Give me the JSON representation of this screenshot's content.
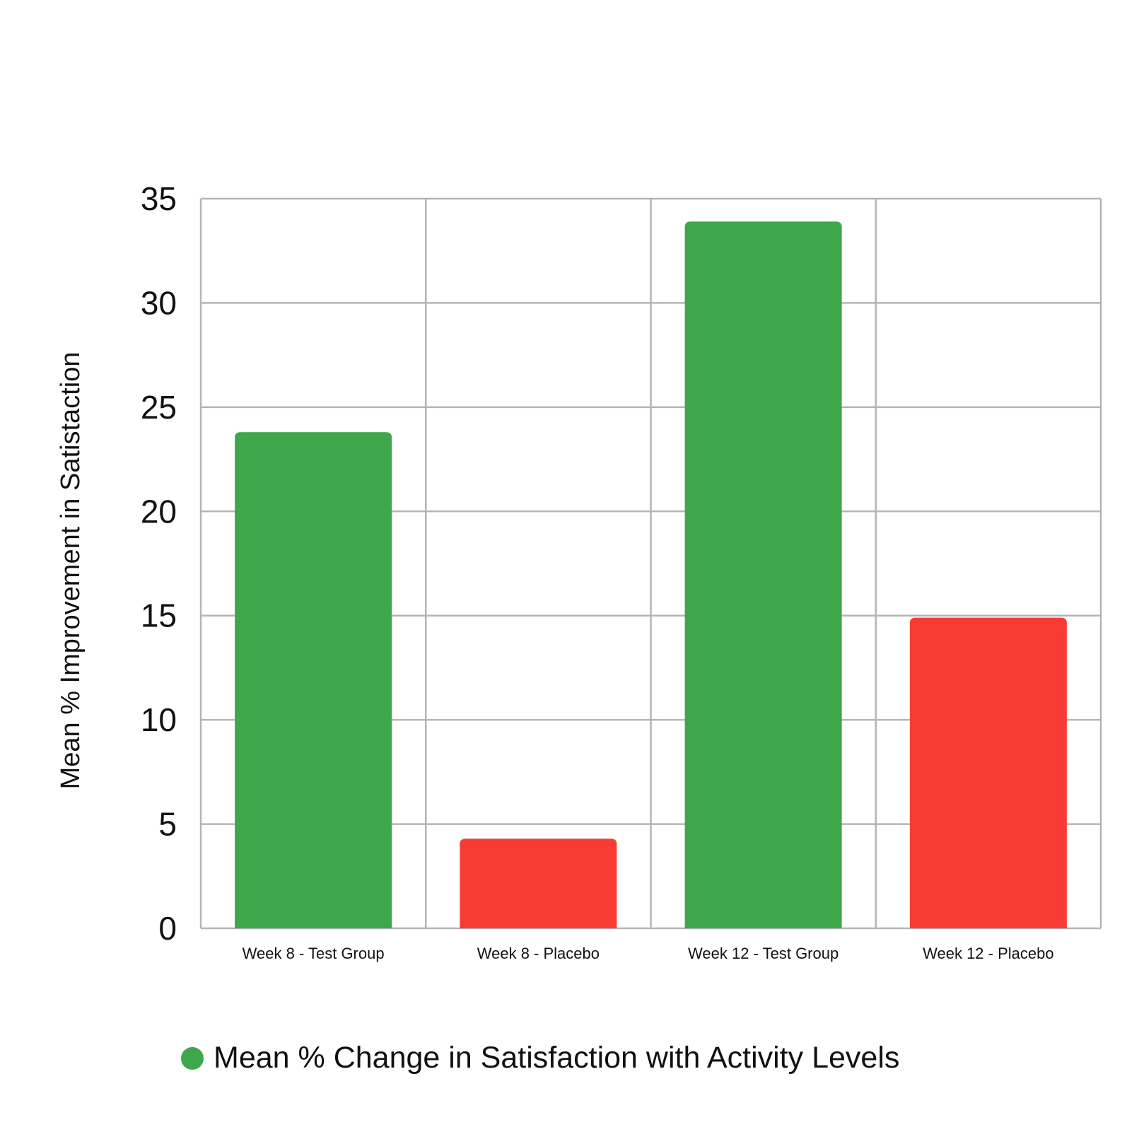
{
  "chart_data": {
    "type": "bar",
    "title": "",
    "categories": [
      "Week 8 - Test Group",
      "Week 8 - Placebo",
      "Week 12 - Test Group",
      "Week 12 - Placebo"
    ],
    "values": [
      23.8,
      4.3,
      33.9,
      14.9
    ],
    "bar_colors": [
      "#3ea64b",
      "#f83b33",
      "#3ea64b",
      "#f83b33"
    ],
    "xlabel": "",
    "ylabel": "Mean % Improvement in Satistaction",
    "ylim": [
      0,
      35
    ],
    "yticks": [
      0,
      5,
      10,
      15,
      20,
      25,
      30,
      35
    ],
    "grid": true,
    "legend": {
      "position": "bottom",
      "entries": [
        {
          "label": "Mean % Change in Satisfaction with Activity Levels",
          "color": "#3ea64b"
        }
      ]
    }
  }
}
